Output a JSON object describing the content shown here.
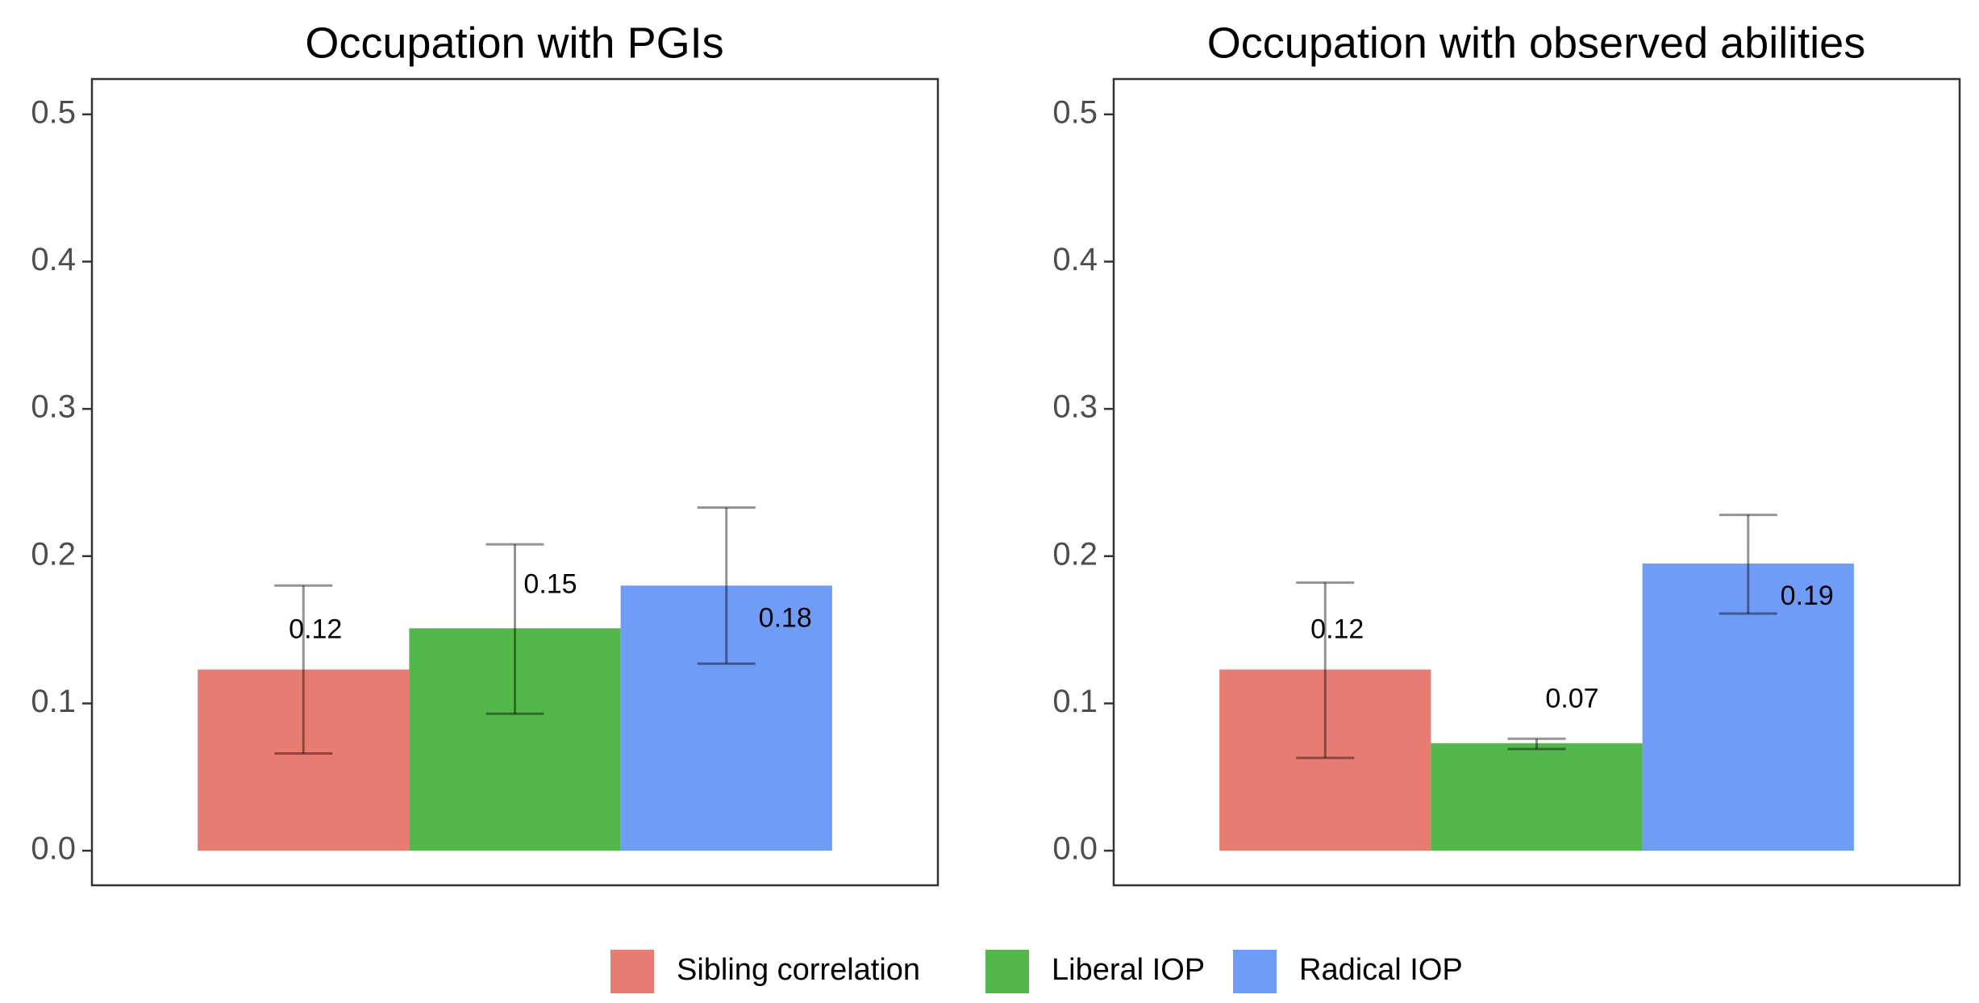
{
  "chart_data": [
    {
      "type": "bar",
      "title": "Occupation with PGIs",
      "xlabel": "",
      "ylabel": "",
      "ylim": [
        -0.0235,
        0.524
      ],
      "yticks": [
        "0.0",
        "0.1",
        "0.2",
        "0.3",
        "0.4",
        "0.5"
      ],
      "grid": false,
      "series": [
        {
          "name": "Sibling correlation",
          "value": 0.123,
          "label": "0.12",
          "ci": [
            0.066,
            0.18
          ],
          "color": "#e87c72"
        },
        {
          "name": "Liberal IOP",
          "value": 0.151,
          "label": "0.15",
          "ci": [
            0.093,
            0.208
          ],
          "color": "#53b74c"
        },
        {
          "name": "Radical IOP",
          "value": 0.18,
          "label": "0.18",
          "ci": [
            0.127,
            0.233
          ],
          "color": "#6f9cf7"
        }
      ]
    },
    {
      "type": "bar",
      "title": "Occupation with observed abilities",
      "xlabel": "",
      "ylabel": "",
      "ylim": [
        -0.0235,
        0.524
      ],
      "yticks": [
        "0.0",
        "0.1",
        "0.2",
        "0.3",
        "0.4",
        "0.5"
      ],
      "grid": false,
      "series": [
        {
          "name": "Sibling correlation",
          "value": 0.123,
          "label": "0.12",
          "ci": [
            0.063,
            0.182
          ],
          "color": "#e87c72"
        },
        {
          "name": "Liberal IOP",
          "value": 0.073,
          "label": "0.07",
          "ci": [
            0.069,
            0.076
          ],
          "color": "#53b74c"
        },
        {
          "name": "Radical IOP",
          "value": 0.195,
          "label": "0.19",
          "ci": [
            0.161,
            0.228
          ],
          "color": "#6f9cf7"
        }
      ]
    }
  ],
  "legend": {
    "position": "bottom",
    "items": [
      {
        "label": "Sibling correlation",
        "color": "#e87c72"
      },
      {
        "label": "Liberal IOP",
        "color": "#53b74c"
      },
      {
        "label": "Radical IOP",
        "color": "#6f9cf7"
      }
    ]
  }
}
